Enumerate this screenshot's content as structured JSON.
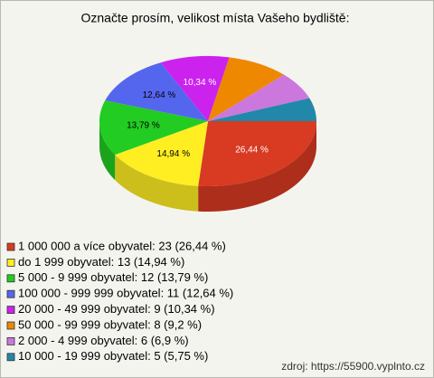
{
  "chart_data": {
    "type": "pie",
    "title": "Označte prosím, velikost místa Vašeho bydliště:",
    "categories": [
      "1 000 000 a více obyvatel: 23 (26,44 %)",
      "do 1 999 obyvatel: 13 (14,94 %)",
      "5 000 - 9 999 obyvatel: 12 (13,79 %)",
      "100 000 - 999 999 obyvatel: 11 (12,64 %)",
      "20 000 - 49 999 obyvatel: 9 (10,34 %)",
      "50 000 - 99 999 obyvatel: 8 (9,2 %)",
      "2 000 - 4 999 obyvatel: 6 (6,9 %)",
      "10 000 - 19 999 obyvatel: 5 (5,75 %)"
    ],
    "values": [
      26.44,
      14.94,
      13.79,
      12.64,
      10.34,
      9.2,
      6.9,
      5.75
    ],
    "value_labels": [
      "26,44 %",
      "14,94 %",
      "13,79 %",
      "12,64 %",
      "10,34 %",
      null,
      null,
      null
    ],
    "colors": [
      "#d83a22",
      "#ffee22",
      "#22cc22",
      "#5566ee",
      "#cc22ee",
      "#ee8800",
      "#cc77dd",
      "#2288aa"
    ],
    "footer": "zdroj: https://55900.vyplnto.cz"
  }
}
